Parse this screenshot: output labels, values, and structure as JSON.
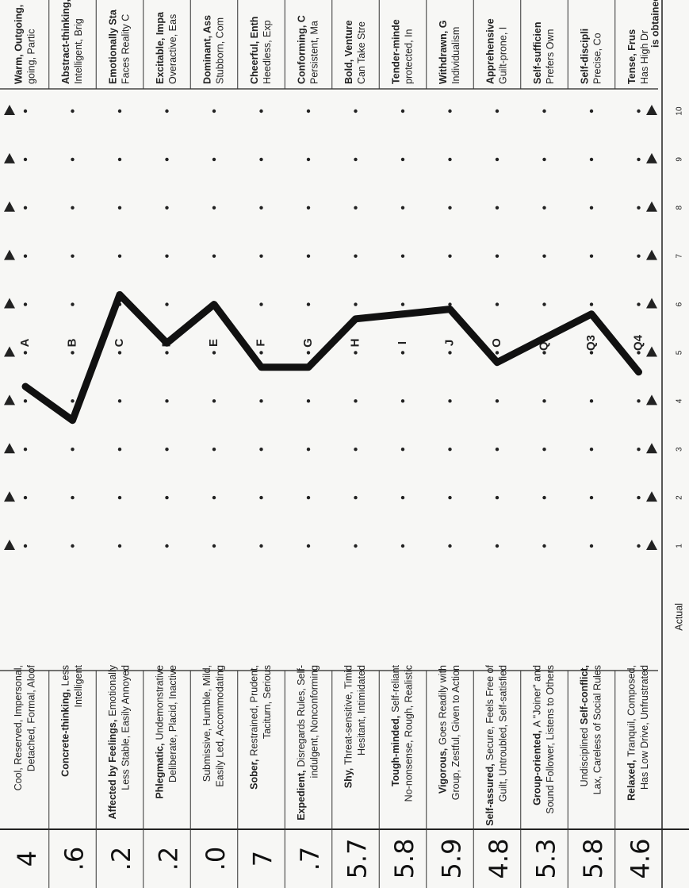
{
  "chart_data": {
    "type": "line",
    "rows": [
      {
        "factor": "A",
        "score": "4",
        "left": [
          [
            {
              "text": "Cool, Reserved, Impersonal,"
            }
          ],
          "Detached, Formal, Aloof"
        ],
        "right": [
          "Warm, Outgoing,",
          "going, Partic"
        ]
      },
      {
        "factor": "B",
        "score": ".6",
        "left": [
          [
            {
              "text": "Concrete-thinking,",
              "bold": true
            },
            {
              "text": "Less"
            }
          ],
          "Intelligent"
        ],
        "right": [
          "Abstract-thinking,",
          "Intelligent, Brig"
        ]
      },
      {
        "factor": "C",
        "score": ".2",
        "left": [
          [
            {
              "text": "Affected by Feelings,",
              "bold": true
            },
            {
              "text": "Emotionally"
            }
          ],
          "Less Stable, Easily Annoyed"
        ],
        "right": [
          "Emotionally Sta",
          "Faces Reality C"
        ]
      },
      {
        "factor": "D",
        "score": ".2",
        "left": [
          [
            {
              "text": "Phlegmatic,",
              "bold": true
            },
            {
              "text": "Undemonstrative"
            }
          ],
          "Deliberate, Placid, Inactive"
        ],
        "right": [
          "Excitable, Impa",
          "Overactive, Eas"
        ]
      },
      {
        "factor": "E",
        "score": ".0",
        "left": [
          [
            {
              "text": "Submissive, Humble, Mild,"
            }
          ],
          "Easily Led, Accommodating"
        ],
        "right": [
          "Dominant, Ass",
          "Stubborn, Com"
        ]
      },
      {
        "factor": "F",
        "score": "7",
        "left": [
          [
            {
              "text": "Sober,",
              "bold": true
            },
            {
              "text": "Restrained, Prudent,"
            }
          ],
          "Taciturn, Serious"
        ],
        "right": [
          "Cheerful, Enth",
          "Heedless, Exp"
        ]
      },
      {
        "factor": "G",
        "score": ".7",
        "left": [
          [
            {
              "text": "Expedient,",
              "bold": true
            },
            {
              "text": "Disregards Rules, Self-"
            }
          ],
          "indulgent, Nonconforming"
        ],
        "right": [
          "Conforming, C",
          "Persistent, Ma"
        ]
      },
      {
        "factor": "H",
        "score": "5.7",
        "left": [
          [
            {
              "text": "Shy,",
              "bold": true
            },
            {
              "text": "Threat-sensitive, Timid"
            }
          ],
          "Hesitant, Intimidated"
        ],
        "right": [
          "Bold, Venture",
          "Can Take Stre"
        ]
      },
      {
        "factor": "I",
        "score": "5.8",
        "left": [
          [
            {
              "text": "Tough-minded,",
              "bold": true
            },
            {
              "text": "Self-reliant"
            }
          ],
          "No-nonsense, Rough, Realistic"
        ],
        "right": [
          "Tender-minde",
          "protected, In"
        ]
      },
      {
        "factor": "J",
        "score": "5.9",
        "left": [
          [
            {
              "text": "Vigorous,",
              "bold": true
            },
            {
              "text": "Goes Readily with"
            }
          ],
          "Group, Zestful, Given to Action"
        ],
        "right": [
          "Withdrawn, G",
          "Individualism"
        ]
      },
      {
        "factor": "O",
        "score": "4.8",
        "left": [
          [
            {
              "text": "Self-assured,",
              "bold": true
            },
            {
              "text": "Secure, Feels Free of"
            }
          ],
          "Guilt, Untroubled, Self-satisfied"
        ],
        "right": [
          "Apprehensive",
          "Guilt-prone, I"
        ]
      },
      {
        "factor": "Q2",
        "score": "5.3",
        "left": [
          [
            {
              "text": "Group-oriented,",
              "bold": true
            },
            {
              "text": "A \"Joiner\" and"
            }
          ],
          "Sound Follower, Listens to Others"
        ],
        "right": [
          "Self-sufficien",
          "Prefers Own"
        ]
      },
      {
        "factor": "Q3",
        "score": "5.8",
        "left": [
          [
            {
              "text": "Undisciplined"
            },
            {
              "text": "Self-conflict,",
              "bold": true
            }
          ],
          "Lax, Careless of Social Rules"
        ],
        "right": [
          "Self-discipli",
          "Precise, Co"
        ]
      },
      {
        "factor": "Q4",
        "score": "4.6",
        "left": [
          [
            {
              "text": "Relaxed,",
              "bold": true
            },
            {
              "text": "Tranquil, Composed,"
            }
          ],
          "Has Low Drive, Unfrustrated"
        ],
        "right": [
          "Tense, Frus",
          "Has High Dr"
        ]
      }
    ],
    "values": [
      4.3,
      3.6,
      6.2,
      5.2,
      6.0,
      4.7,
      4.7,
      5.7,
      5.8,
      5.9,
      4.8,
      5.3,
      5.8,
      4.6
    ],
    "ylim": [
      1,
      10
    ],
    "yticks": [
      1,
      2,
      3,
      4,
      5,
      6,
      7,
      8,
      9,
      10
    ],
    "color": "#111111",
    "footer_left": "Actual",
    "footer_right": "is obtained"
  }
}
